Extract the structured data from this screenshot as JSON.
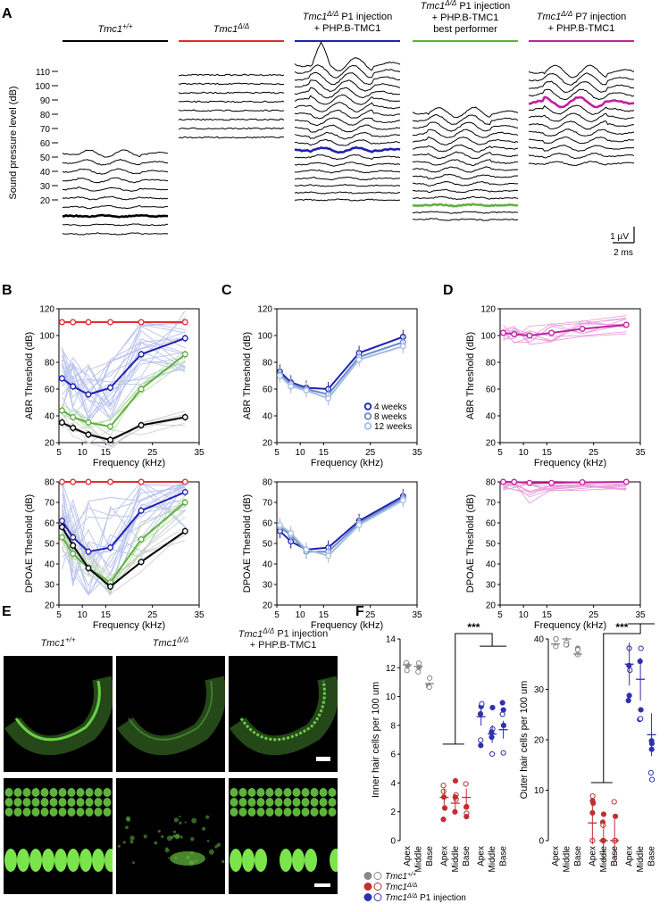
{
  "panels": {
    "A": "A",
    "B": "B",
    "C": "C",
    "D": "D",
    "E": "E",
    "F": "F"
  },
  "panelA": {
    "groups": [
      {
        "line1": "Tmc1",
        "sup": "+/+",
        "line2": "",
        "line3": "",
        "color": "#000000"
      },
      {
        "line1": "Tmc1",
        "sup": "Δ/Δ",
        "line2": "",
        "line3": "",
        "color": "#e03030"
      },
      {
        "line1": "Tmc1",
        "sup": "Δ/Δ",
        "line1b": " P1 injection",
        "line2": "+ PHP.B-TMC1",
        "line3": "",
        "color": "#2020b0"
      },
      {
        "line1": "Tmc1",
        "sup": "Δ/Δ",
        "line1b": " P1 injection",
        "line2": "+ PHP.B-TMC1",
        "line3": "best performer",
        "color": "#60b040"
      },
      {
        "line1": "Tmc1",
        "sup": "Δ/Δ",
        "line1b": " P7 injection",
        "line2": "+ PHP.B-TMC1",
        "line3": "",
        "color": "#c020a0"
      }
    ],
    "ylabel": "Sound pressure level (dB)",
    "levels": [
      "110",
      "100",
      "90",
      "80",
      "70",
      "60",
      "50",
      "40",
      "30",
      "20"
    ],
    "scalebar": {
      "v": "1 µV",
      "t": "2 ms"
    }
  },
  "chart_data": [
    {
      "panel": "B",
      "type": "line",
      "x": [
        5.66,
        8,
        11.3,
        16,
        22.6,
        32
      ],
      "xlabel": "Frequency (kHz)",
      "ylabel": "ABR Threshold (dB)",
      "ylim": [
        20,
        120
      ],
      "xticks": [
        "5",
        "10",
        "15",
        "25",
        "35"
      ],
      "yticks": [
        "20",
        "40",
        "60",
        "80",
        "100",
        "120"
      ],
      "series": [
        {
          "color": "#e03030",
          "values": [
            110,
            110,
            110,
            110,
            110,
            110
          ]
        },
        {
          "color": "#2020b0",
          "values": [
            68,
            62,
            56,
            61,
            86,
            98
          ]
        },
        {
          "color": "#60b040",
          "values": [
            44,
            39,
            35,
            32,
            60,
            86
          ]
        },
        {
          "color": "#000000",
          "values": [
            35,
            31,
            26,
            22,
            33,
            39
          ]
        }
      ]
    },
    {
      "panel": "B",
      "type": "line",
      "x": [
        5.66,
        8,
        11.3,
        16,
        22.6,
        32
      ],
      "xlabel": "Frequency (kHz)",
      "ylabel": "DPOAE Theshold (dB)",
      "ylim": [
        20,
        80
      ],
      "xticks": [
        "5",
        "10",
        "15",
        "25",
        "35"
      ],
      "yticks": [
        "20",
        "30",
        "40",
        "50",
        "60",
        "70",
        "80"
      ],
      "series": [
        {
          "color": "#e03030",
          "values": [
            80,
            80,
            80,
            80,
            80,
            80
          ]
        },
        {
          "color": "#2020b0",
          "values": [
            61,
            53,
            46,
            48,
            66,
            75
          ]
        },
        {
          "color": "#60b040",
          "values": [
            53,
            45,
            38,
            31,
            52,
            70
          ]
        },
        {
          "color": "#000000",
          "values": [
            58,
            49,
            38,
            29,
            41,
            56
          ]
        }
      ]
    },
    {
      "panel": "C",
      "type": "line",
      "x": [
        5.66,
        8,
        11.3,
        16,
        22.6,
        32
      ],
      "xlabel": "Frequency (kHz)",
      "ylabel": "ABR Threshold (dB)",
      "ylim": [
        20,
        120
      ],
      "xticks": [
        "5",
        "10",
        "15",
        "25",
        "35"
      ],
      "yticks": [
        "20",
        "40",
        "60",
        "80",
        "100",
        "120"
      ],
      "legend": [
        "4 weeks",
        "8 weeks",
        "12 weeks"
      ],
      "series": [
        {
          "name": "4 weeks",
          "color": "#2020b0",
          "values": [
            73,
            65,
            61,
            60,
            87,
            99
          ]
        },
        {
          "name": "8 weeks",
          "color": "#6a8cc8",
          "values": [
            71,
            64,
            60,
            56,
            84,
            95
          ]
        },
        {
          "name": "12 weeks",
          "color": "#a8bce0",
          "values": [
            70,
            62,
            59,
            53,
            82,
            92
          ]
        }
      ]
    },
    {
      "panel": "C",
      "type": "line",
      "x": [
        5.66,
        8,
        11.3,
        16,
        22.6,
        32
      ],
      "xlabel": "Frequency (kHz)",
      "ylabel": "DPOAE Theshold (dB)",
      "ylim": [
        20,
        80
      ],
      "xticks": [
        "5",
        "10",
        "15",
        "25",
        "35"
      ],
      "yticks": [
        "20",
        "30",
        "40",
        "50",
        "60",
        "70",
        "80"
      ],
      "series": [
        {
          "color": "#2020b0",
          "values": [
            56,
            51,
            47,
            48,
            61,
            73
          ]
        },
        {
          "color": "#6a8cc8",
          "values": [
            58,
            54,
            46,
            46,
            60,
            72
          ]
        },
        {
          "color": "#a8bce0",
          "values": [
            59,
            55,
            47,
            44,
            59,
            71
          ]
        }
      ]
    },
    {
      "panel": "D",
      "type": "line",
      "x": [
        5.66,
        8,
        11.3,
        16,
        22.6,
        32
      ],
      "xlabel": "Frequency (kHz)",
      "ylabel": "ABR Threshold (dB)",
      "ylim": [
        20,
        120
      ],
      "xticks": [
        "5",
        "10",
        "15",
        "25",
        "35"
      ],
      "yticks": [
        "20",
        "40",
        "60",
        "80",
        "100",
        "120"
      ],
      "series": [
        {
          "color": "#c020a0",
          "values": [
            102,
            101,
            100,
            102,
            105,
            108
          ]
        }
      ]
    },
    {
      "panel": "D",
      "type": "line",
      "x": [
        5.66,
        8,
        11.3,
        16,
        22.6,
        32
      ],
      "xlabel": "Frequency (kHz)",
      "ylabel": "DPOAE Theshold (dB)",
      "ylim": [
        20,
        80
      ],
      "xticks": [
        "5",
        "10",
        "15",
        "25",
        "35"
      ],
      "yticks": [
        "20",
        "30",
        "40",
        "50",
        "60",
        "70",
        "80"
      ],
      "series": [
        {
          "color": "#c020a0",
          "values": [
            80,
            80,
            79.5,
            79.5,
            79.8,
            80
          ]
        }
      ]
    },
    {
      "panel": "F",
      "type": "scatter",
      "categories": [
        "Apex",
        "Middle",
        "Base",
        "Apex",
        "Middle",
        "Base",
        "Apex",
        "Middle",
        "Base"
      ],
      "ylabel": "Inner hair cells per 100 um",
      "ylim": [
        0,
        14
      ],
      "yticks": [
        "0",
        "2",
        "4",
        "6",
        "8",
        "10",
        "12",
        "14"
      ],
      "means": [
        12.2,
        12.1,
        10.9,
        3.0,
        2.6,
        3.0,
        8.6,
        7.4,
        7.7
      ],
      "colors": [
        "#888888",
        "#888888",
        "#888888",
        "#c03030",
        "#c03030",
        "#c03030",
        "#3030b0",
        "#3030b0",
        "#3030b0"
      ],
      "significance": "***"
    },
    {
      "panel": "F",
      "type": "scatter",
      "categories": [
        "Apex",
        "Middle",
        "Base",
        "Apex",
        "Middle",
        "Base",
        "Apex",
        "Middle",
        "Base"
      ],
      "ylabel": "Outer hair cells per 100 um",
      "ylim": [
        0,
        40
      ],
      "yticks": [
        "0",
        "10",
        "20",
        "30",
        "40"
      ],
      "means": [
        39,
        40,
        37,
        3.5,
        0,
        0,
        35,
        32,
        21
      ],
      "colors": [
        "#888888",
        "#888888",
        "#888888",
        "#c03030",
        "#c03030",
        "#c03030",
        "#3030b0",
        "#3030b0",
        "#3030b0"
      ],
      "significance": "***"
    }
  ],
  "panelE": {
    "labels": [
      {
        "base": "Tmc1",
        "sup": "+/+",
        "rest": "",
        "line2": ""
      },
      {
        "base": "Tmc1",
        "sup": "Δ/Δ",
        "rest": "",
        "line2": ""
      },
      {
        "base": "Tmc1",
        "sup": "Δ/Δ",
        "rest": " P1 injection",
        "line2": "+ PHP.B-TMC1"
      }
    ]
  },
  "panelF_legend": [
    {
      "base": "Tmc1",
      "sup": "+/+",
      "rest": "",
      "color": "#888888"
    },
    {
      "base": "Tmc1",
      "sup": "Δ/Δ",
      "rest": "",
      "color": "#c03030"
    },
    {
      "base": "Tmc1",
      "sup": "Δ/Δ",
      "rest": " P1 injection",
      "color": "#3030b0"
    }
  ]
}
